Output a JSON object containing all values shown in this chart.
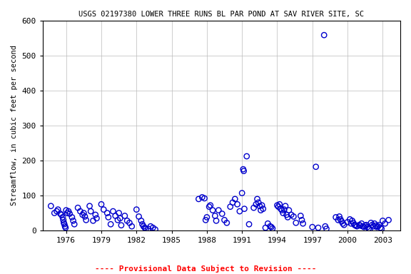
{
  "title": "USGS 02197380 LOWER THREE RUNS BL PAR POND AT SAV RIVER SITE, SC",
  "ylabel": "Streamflow, in cubic feet per second",
  "footnote": "---- Provisional Data Subject to Revision ----",
  "xlim": [
    1974.0,
    2004.5
  ],
  "ylim": [
    0,
    600
  ],
  "yticks": [
    0,
    100,
    200,
    300,
    400,
    500,
    600
  ],
  "xticks": [
    1976,
    1979,
    1982,
    1985,
    1988,
    1991,
    1994,
    1997,
    2000,
    2003
  ],
  "marker_color": "#0000CC",
  "marker_size": 28,
  "marker_lw": 1.0,
  "grid_color": "#BBBBBB",
  "background_color": "#FFFFFF",
  "title_fontsize": 7.5,
  "label_fontsize": 7.5,
  "tick_fontsize": 8,
  "footnote_fontsize": 8,
  "data_x": [
    1974.7,
    1975.0,
    1975.2,
    1975.3,
    1975.5,
    1975.6,
    1975.7,
    1975.75,
    1975.8,
    1975.85,
    1975.9,
    1975.95,
    1976.0,
    1976.1,
    1976.2,
    1976.3,
    1976.5,
    1976.6,
    1976.7,
    1977.0,
    1977.2,
    1977.4,
    1977.5,
    1977.6,
    1977.7,
    1978.0,
    1978.1,
    1978.3,
    1978.5,
    1978.6,
    1979.0,
    1979.2,
    1979.5,
    1979.6,
    1979.8,
    1980.0,
    1980.2,
    1980.4,
    1980.5,
    1980.6,
    1980.7,
    1981.0,
    1981.2,
    1981.4,
    1981.6,
    1982.0,
    1982.2,
    1982.4,
    1982.5,
    1982.6,
    1982.7,
    1982.8,
    1983.0,
    1983.2,
    1983.4,
    1983.6,
    1987.3,
    1987.6,
    1987.8,
    1987.9,
    1988.0,
    1988.2,
    1988.3,
    1988.5,
    1988.7,
    1988.8,
    1989.0,
    1989.3,
    1989.5,
    1989.7,
    1990.0,
    1990.2,
    1990.4,
    1990.6,
    1990.8,
    1991.0,
    1991.1,
    1991.15,
    1991.2,
    1991.4,
    1991.6,
    1992.0,
    1992.2,
    1992.3,
    1992.4,
    1992.5,
    1992.6,
    1992.7,
    1992.8,
    1993.0,
    1993.2,
    1993.4,
    1993.5,
    1993.6,
    1994.0,
    1994.1,
    1994.2,
    1994.3,
    1994.4,
    1994.5,
    1994.6,
    1994.7,
    1994.8,
    1994.9,
    1995.0,
    1995.2,
    1995.4,
    1995.6,
    1996.0,
    1996.1,
    1996.2,
    1997.0,
    1997.3,
    1997.5,
    1998.0,
    1998.1,
    1998.2,
    1999.0,
    1999.2,
    1999.3,
    1999.4,
    1999.5,
    1999.6,
    1999.7,
    2000.0,
    2000.2,
    2000.3,
    2000.4,
    2000.5,
    2000.6,
    2000.7,
    2000.8,
    2001.0,
    2001.1,
    2001.2,
    2001.3,
    2001.4,
    2001.5,
    2001.6,
    2001.7,
    2001.8,
    2001.9,
    2002.0,
    2002.1,
    2002.2,
    2002.3,
    2002.4,
    2002.5,
    2002.6,
    2002.7,
    2002.8,
    2002.9,
    2003.0,
    2003.2,
    2003.5
  ],
  "data_y": [
    70,
    50,
    55,
    60,
    48,
    45,
    38,
    30,
    22,
    18,
    12,
    8,
    58,
    50,
    55,
    48,
    38,
    28,
    18,
    65,
    55,
    45,
    50,
    40,
    30,
    70,
    55,
    28,
    45,
    35,
    75,
    60,
    50,
    38,
    18,
    55,
    42,
    30,
    50,
    35,
    15,
    42,
    28,
    22,
    12,
    60,
    40,
    28,
    18,
    12,
    8,
    5,
    5,
    12,
    8,
    3,
    90,
    95,
    92,
    30,
    38,
    68,
    72,
    58,
    42,
    28,
    58,
    48,
    30,
    22,
    68,
    80,
    90,
    75,
    55,
    107,
    175,
    170,
    62,
    212,
    18,
    65,
    75,
    90,
    80,
    70,
    58,
    72,
    62,
    8,
    20,
    12,
    10,
    6,
    72,
    68,
    75,
    62,
    58,
    50,
    60,
    70,
    45,
    38,
    58,
    45,
    40,
    22,
    42,
    30,
    20,
    10,
    182,
    8,
    558,
    12,
    5,
    38,
    30,
    40,
    32,
    26,
    20,
    16,
    24,
    32,
    20,
    28,
    22,
    16,
    14,
    12,
    16,
    14,
    20,
    12,
    10,
    14,
    16,
    10,
    6,
    4,
    22,
    16,
    12,
    20,
    14,
    10,
    12,
    16,
    8,
    5,
    28,
    20,
    30
  ]
}
